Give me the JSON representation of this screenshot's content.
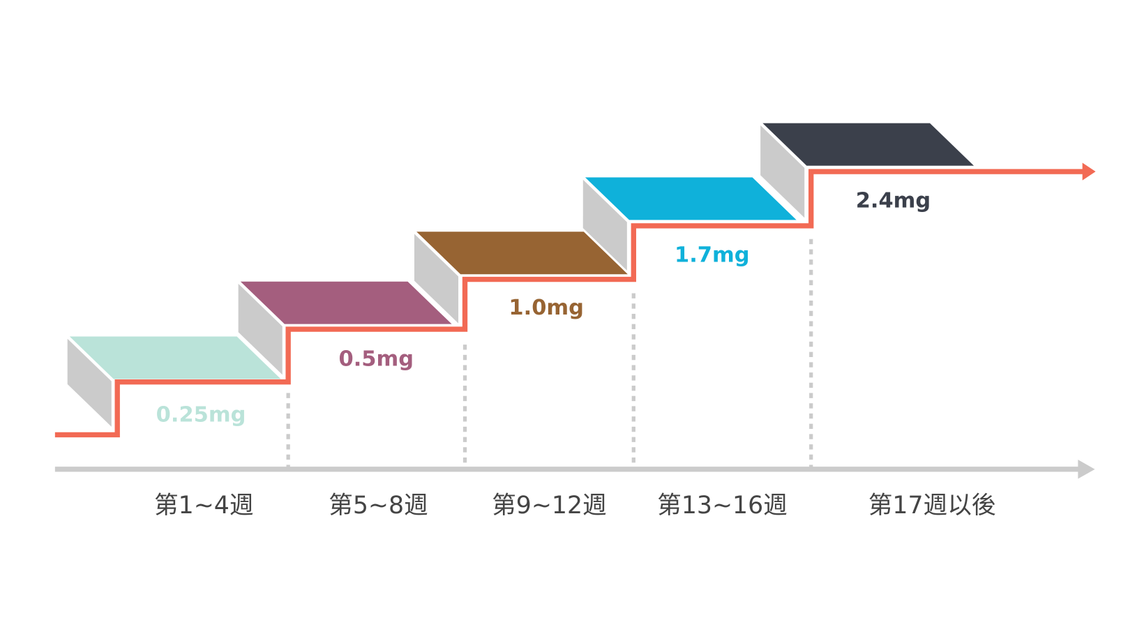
{
  "colors": {
    "path_line": "#f26a54",
    "axis": "#cbcbcb",
    "step_side": "#cbcbcb",
    "dashed_divider": "#cbcbcb",
    "week_label": "#444444"
  },
  "steps": [
    {
      "dose": "0.25mg",
      "period": "第1~4週",
      "color": "#bae3d9"
    },
    {
      "dose": "0.5mg",
      "period": "第5~8週",
      "color": "#a45e7e"
    },
    {
      "dose": "1.0mg",
      "period": "第9~12週",
      "color": "#976433"
    },
    {
      "dose": "1.7mg",
      "period": "第13~16週",
      "color": "#0fb1da"
    },
    {
      "dose": "2.4mg",
      "period": "第17週以後",
      "color": "#3b404b"
    }
  ]
}
